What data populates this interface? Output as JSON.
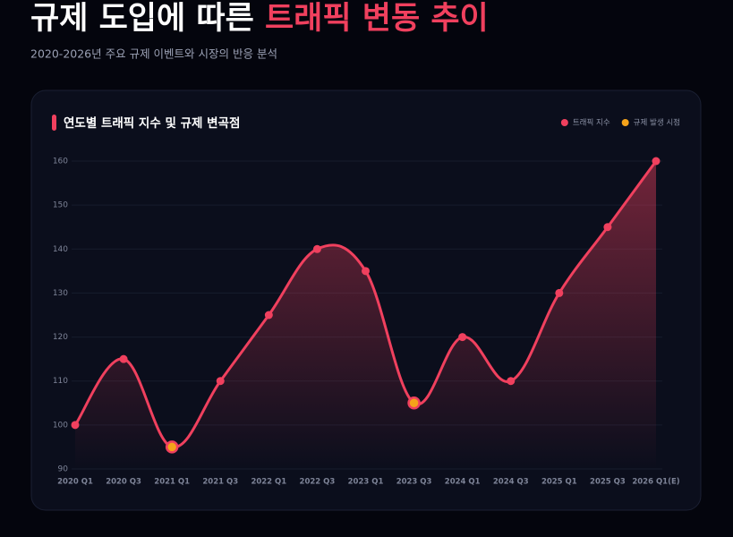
{
  "chart_data": {
    "type": "line",
    "title_parts": [
      "규제 도입에 따른 ",
      "트래픽 변동 추이"
    ],
    "subtitle": "2020-2026년 주요 규제 이벤트와 시장의 반응 분석",
    "panel_title": "연도별 트래픽 지수 및 규제 변곡점",
    "categories": [
      "2020 Q1",
      "2020 Q3",
      "2021 Q1",
      "2021 Q3",
      "2022 Q1",
      "2022 Q3",
      "2023 Q1",
      "2023 Q3",
      "2024 Q1",
      "2024 Q3",
      "2025 Q1",
      "2025 Q3",
      "2026 Q1(E)"
    ],
    "series": [
      {
        "name": "트래픽 지수",
        "color": "#f0405e",
        "values": [
          100,
          115,
          95,
          110,
          125,
          140,
          135,
          105,
          120,
          110,
          130,
          145,
          160
        ]
      },
      {
        "name": "규제 발생 시점",
        "color": "#f5a31a",
        "values": [
          null,
          null,
          95,
          null,
          null,
          null,
          null,
          105,
          null,
          null,
          null,
          null,
          null
        ]
      }
    ],
    "ylim": [
      90,
      160
    ],
    "yticks": [
      90,
      100,
      110,
      120,
      130,
      140,
      150,
      160
    ],
    "grid": true,
    "legend": "top-right"
  }
}
